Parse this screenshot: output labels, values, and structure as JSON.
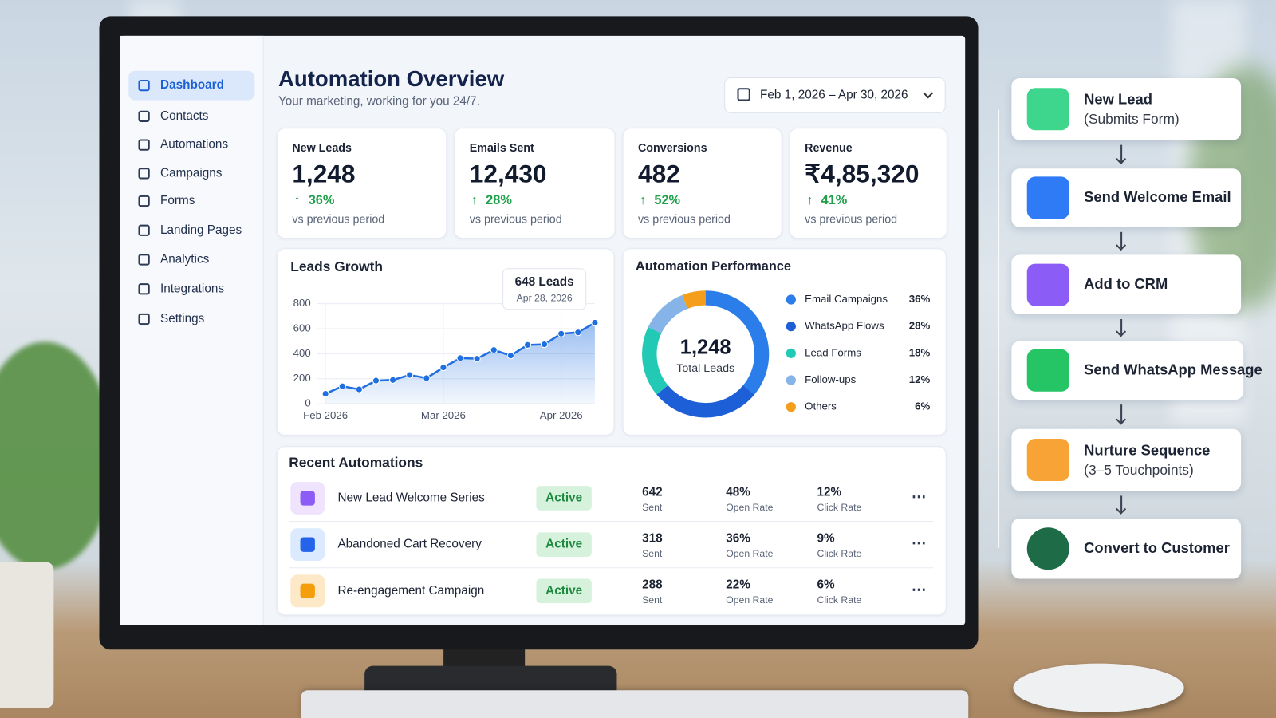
{
  "sidebar": {
    "items": [
      "Dashboard",
      "Contacts",
      "Automations",
      "Campaigns",
      "Forms",
      "Landing Pages",
      "Analytics",
      "Integrations",
      "Settings"
    ]
  },
  "header": {
    "title": "Automation Overview",
    "subtitle": "Your marketing, working for you 24/7.",
    "date_range": "Feb 1, 2026 – Apr 30, 2026"
  },
  "kpis": [
    {
      "label": "New Leads",
      "value": "1,248",
      "change": "36%",
      "note": "vs previous period"
    },
    {
      "label": "Emails Sent",
      "value": "12,430",
      "change": "28%",
      "note": "vs previous period"
    },
    {
      "label": "Conversions",
      "value": "482",
      "change": "52%",
      "note": "vs previous period"
    },
    {
      "label": "Revenue",
      "value": "₹4,85,320",
      "change": "41%",
      "note": "vs previous period"
    }
  ],
  "leads_growth": {
    "type": "line",
    "title": "Leads Growth",
    "color": "#1f6fe0",
    "categories": [
      "Feb 2026",
      null,
      null,
      null,
      null,
      null,
      null,
      "Mar 2026",
      null,
      null,
      null,
      null,
      null,
      null,
      "Apr 2026",
      null,
      null
    ],
    "values": [
      80,
      140,
      115,
      185,
      190,
      230,
      205,
      290,
      365,
      360,
      430,
      385,
      470,
      475,
      560,
      570,
      648
    ],
    "ylim": [
      0,
      800
    ],
    "yticks": [
      0,
      200,
      400,
      600,
      800
    ],
    "grid": true,
    "tooltip": {
      "title": "648 Leads",
      "date": "Apr 28, 2026"
    }
  },
  "automation_performance": {
    "type": "donut",
    "title": "Automation Performance",
    "center_value": "1,248",
    "center_label": "Total Leads",
    "categories": [
      "Email Campaigns",
      "WhatsApp Flows",
      "Lead Forms",
      "Follow-ups",
      "Others"
    ],
    "values": [
      36,
      28,
      18,
      12,
      6
    ],
    "value_labels": [
      "36%",
      "28%",
      "18%",
      "12%",
      "6%"
    ],
    "colors": [
      "#2b7de9",
      "#1d5fd6",
      "#22c9b4",
      "#86b4e8",
      "#f59e1b"
    ]
  },
  "recent_automations": {
    "title": "Recent Automations",
    "sent_label": "Sent",
    "open_label": "Open Rate",
    "click_label": "Click Rate",
    "rows": [
      {
        "name": "New Lead Welcome Series",
        "status": "Active",
        "sent": "642",
        "open_rate": "48%",
        "click_rate": "12%"
      },
      {
        "name": "Abandoned Cart Recovery",
        "status": "Active",
        "sent": "318",
        "open_rate": "36%",
        "click_rate": "9%"
      },
      {
        "name": "Re-engagement Campaign",
        "status": "Active",
        "sent": "288",
        "open_rate": "22%",
        "click_rate": "6%"
      }
    ]
  },
  "workflow": {
    "steps": [
      {
        "title": "New Lead",
        "subtitle": "(Submits Form)"
      },
      {
        "title": "Send Welcome Email"
      },
      {
        "title": "Add to CRM"
      },
      {
        "title": "Send WhatsApp Message"
      },
      {
        "title": "Nurture Sequence",
        "subtitle": "(3–5 Touchpoints)"
      },
      {
        "title": "Convert to Customer"
      }
    ]
  }
}
